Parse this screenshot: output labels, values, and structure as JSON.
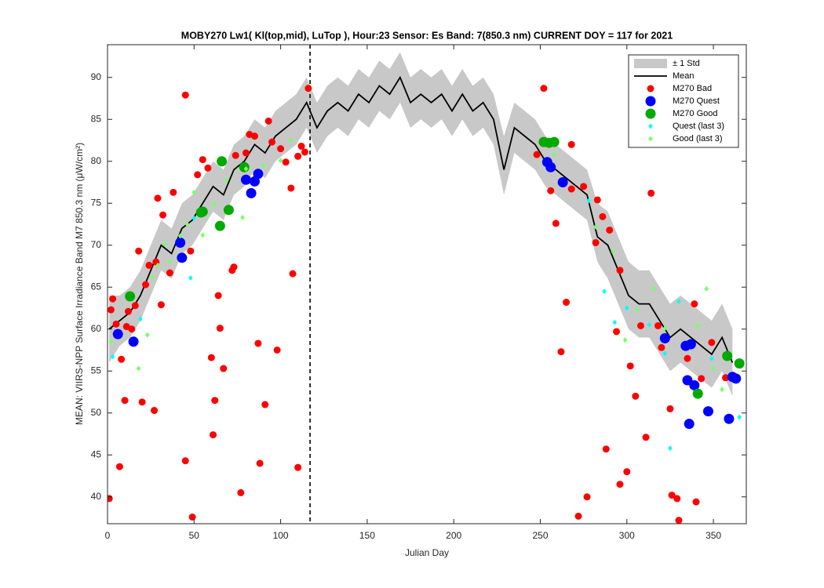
{
  "chart_data": {
    "type": "scatter",
    "title": "MOBY270   Lw1( Kl(top,mid), LuTop ),   Hour:23 Sensor: Es Band: 7(850.3 nm)   CURRENT DOY = 117 for 2021",
    "x_label": "Julian Day",
    "y_label": "MEAN: VIIRS-NPP Surface Irradiance Band M7 850.3 nm (μW/cm²)",
    "xlim": [
      0,
      369
    ],
    "ylim": [
      36.8,
      93.9
    ],
    "xticks": [
      0,
      50,
      100,
      150,
      200,
      250,
      300,
      350
    ],
    "yticks": [
      40,
      45,
      50,
      55,
      60,
      65,
      70,
      75,
      80,
      85,
      90
    ],
    "current_doy": 117,
    "legend": "top-right",
    "x": [
      1,
      7,
      13,
      19,
      25,
      31,
      37,
      43,
      49,
      55,
      61,
      67,
      73,
      79,
      85,
      91,
      97,
      103,
      109,
      115,
      121,
      127,
      133,
      139,
      145,
      151,
      157,
      163,
      169,
      175,
      181,
      187,
      193,
      199,
      205,
      211,
      217,
      223,
      229,
      235,
      241,
      247,
      253,
      259,
      265,
      271,
      277,
      283,
      289,
      295,
      301,
      307,
      313,
      319,
      325,
      331,
      337,
      343,
      349,
      355,
      361
    ],
    "series": [
      {
        "name": "± 1 Std",
        "kind": "band",
        "color": "#c8c8c8",
        "upper": [
          64,
          64,
          65,
          67,
          70,
          73,
          72,
          75,
          76,
          78,
          80,
          79,
          82,
          83,
          85,
          84,
          86,
          87,
          88,
          90,
          87,
          89,
          90,
          89,
          91,
          90,
          92,
          91,
          93,
          90,
          91,
          90,
          91,
          89,
          91,
          89,
          90,
          88,
          83,
          87,
          86,
          85,
          83,
          82,
          81,
          80,
          79,
          75,
          74,
          71,
          68,
          67,
          67,
          65,
          63,
          64,
          63,
          62,
          61,
          63,
          60
        ],
        "lower": [
          56,
          58,
          59,
          61,
          64,
          67,
          66,
          69,
          70,
          72,
          74,
          73,
          76,
          77,
          79,
          78,
          80,
          81,
          82,
          84,
          81,
          83,
          84,
          83,
          85,
          84,
          86,
          85,
          87,
          84,
          85,
          84,
          85,
          83,
          85,
          83,
          84,
          82,
          76,
          81,
          80,
          79,
          77,
          76,
          75,
          74,
          73,
          68,
          66,
          63,
          60,
          59,
          59,
          57,
          55,
          56,
          55,
          54,
          53,
          55,
          52
        ]
      },
      {
        "name": "Mean",
        "kind": "line",
        "color": "#000000",
        "values": [
          60,
          61,
          62,
          64,
          67,
          70,
          69,
          72,
          73,
          75,
          77,
          76,
          79,
          80,
          82,
          81,
          83,
          84,
          85,
          87,
          84,
          86,
          87,
          86,
          88,
          87,
          89,
          88,
          90,
          87,
          88,
          87,
          88,
          86,
          88,
          86,
          87,
          85,
          79,
          84,
          83,
          82,
          80,
          79,
          78,
          77,
          76,
          71,
          70,
          67,
          64,
          63,
          63,
          61,
          59,
          60,
          59,
          58,
          57,
          59,
          56
        ]
      },
      {
        "name": "M270 Bad",
        "kind": "points",
        "marker": "circle",
        "size": 4.5,
        "color": "#ff0000",
        "x": [
          1,
          2,
          3,
          5,
          7,
          8,
          10,
          11,
          12,
          14,
          16,
          18,
          20,
          22,
          24,
          27,
          28,
          29,
          31,
          32,
          36,
          38,
          45,
          45,
          48,
          49,
          52,
          55,
          58,
          60,
          61,
          62,
          64,
          65,
          67,
          72,
          73,
          74,
          77,
          80,
          82,
          85,
          87,
          88,
          91,
          93,
          95,
          98,
          100,
          103,
          106,
          107,
          110,
          110,
          112,
          114,
          116,
          252,
          256,
          259,
          262,
          265,
          268,
          272,
          275,
          277,
          283,
          286,
          288,
          294,
          296,
          300,
          302,
          305,
          311,
          314,
          318,
          325,
          326,
          329,
          330,
          335,
          339,
          340,
          343,
          349,
          357,
          290,
          296,
          308,
          320,
          248,
          268,
          282
        ],
        "values": [
          39.8,
          62.3,
          63.6,
          60.6,
          43.6,
          56.4,
          51.5,
          60.3,
          62.1,
          60,
          62.8,
          69.3,
          51.3,
          65.3,
          67.6,
          50.3,
          68,
          75.6,
          62.9,
          73.6,
          66.7,
          76.3,
          87.9,
          44.3,
          69.3,
          37.6,
          78.4,
          80.2,
          79.2,
          56.6,
          47.4,
          51.5,
          64,
          60.1,
          55.3,
          67,
          67.4,
          80.7,
          40.5,
          81,
          83.2,
          83,
          58.3,
          44,
          51,
          84.8,
          82.3,
          57.5,
          81.5,
          79.9,
          76.8,
          66.6,
          43.5,
          80.6,
          81.8,
          81.1,
          88.7,
          88.7,
          76.5,
          72.6,
          57.3,
          63.2,
          76.7,
          37.7,
          77,
          40,
          75.4,
          73.4,
          45.7,
          59.7,
          41.5,
          43,
          55.6,
          52,
          47.1,
          76.2,
          60.4,
          50.5,
          40.2,
          39.8,
          37.2,
          56.5,
          63,
          39.4,
          54.1,
          58.4,
          54.2,
          71.8,
          67,
          60.4,
          57.8,
          80.8,
          82,
          70.3
        ]
      },
      {
        "name": "M270 Quest",
        "kind": "points",
        "marker": "circle",
        "size": 6.5,
        "color": "#0000ff",
        "x": [
          6,
          15,
          42,
          43,
          80,
          83,
          85,
          87,
          254,
          256,
          263,
          322,
          334,
          335,
          336,
          337,
          339,
          347,
          359,
          361,
          363
        ],
        "values": [
          59.4,
          58.5,
          70.3,
          68.5,
          77.8,
          76.2,
          77.6,
          78.5,
          79.9,
          79.3,
          77.5,
          58.9,
          58,
          53.9,
          48.7,
          58.2,
          53.3,
          50.2,
          49.3,
          54.3,
          54.1
        ]
      },
      {
        "name": "M270 Good",
        "kind": "points",
        "marker": "circle",
        "size": 6.5,
        "color": "#00aa00",
        "x": [
          13,
          54,
          55,
          65,
          66,
          70,
          79,
          252,
          255,
          258,
          341,
          358,
          365
        ],
        "values": [
          63.9,
          73.9,
          74,
          72.3,
          80,
          74.2,
          79.3,
          82.3,
          82.2,
          82.3,
          52.3,
          56.8,
          55.9
        ]
      },
      {
        "name": "Quest (last 3)",
        "kind": "points",
        "marker": "diamond",
        "size": 3.5,
        "color": "#00ffff",
        "x": [
          3,
          19,
          48,
          50,
          278,
          287,
          293,
          300,
          313,
          322,
          325,
          330,
          349,
          365
        ],
        "values": [
          56.7,
          61.2,
          66.1,
          73.2,
          75.3,
          64.5,
          60.8,
          62.5,
          60.5,
          57.1,
          45.8,
          63.3,
          56.5,
          49.5
        ]
      },
      {
        "name": "Good (last 3)",
        "kind": "points",
        "marker": "diamond",
        "size": 3.5,
        "color": "#77ff66",
        "x": [
          2,
          18,
          23,
          26,
          29,
          33,
          36,
          42,
          46,
          50,
          55,
          62,
          69,
          78,
          80,
          90,
          100,
          106,
          258,
          282,
          292,
          299,
          306,
          316,
          322,
          341,
          346,
          350,
          355
        ],
        "values": [
          58.5,
          55.3,
          59.3,
          66.2,
          67.6,
          70.1,
          68,
          71.1,
          72.5,
          76.3,
          71.2,
          74.9,
          77.8,
          73.3,
          79.1,
          79.5,
          80.1,
          82.5,
          80.8,
          72.2,
          69.2,
          58.7,
          62.3,
          64.8,
          60.1,
          60.4,
          64.8,
          55.3,
          52.8
        ]
      }
    ]
  }
}
